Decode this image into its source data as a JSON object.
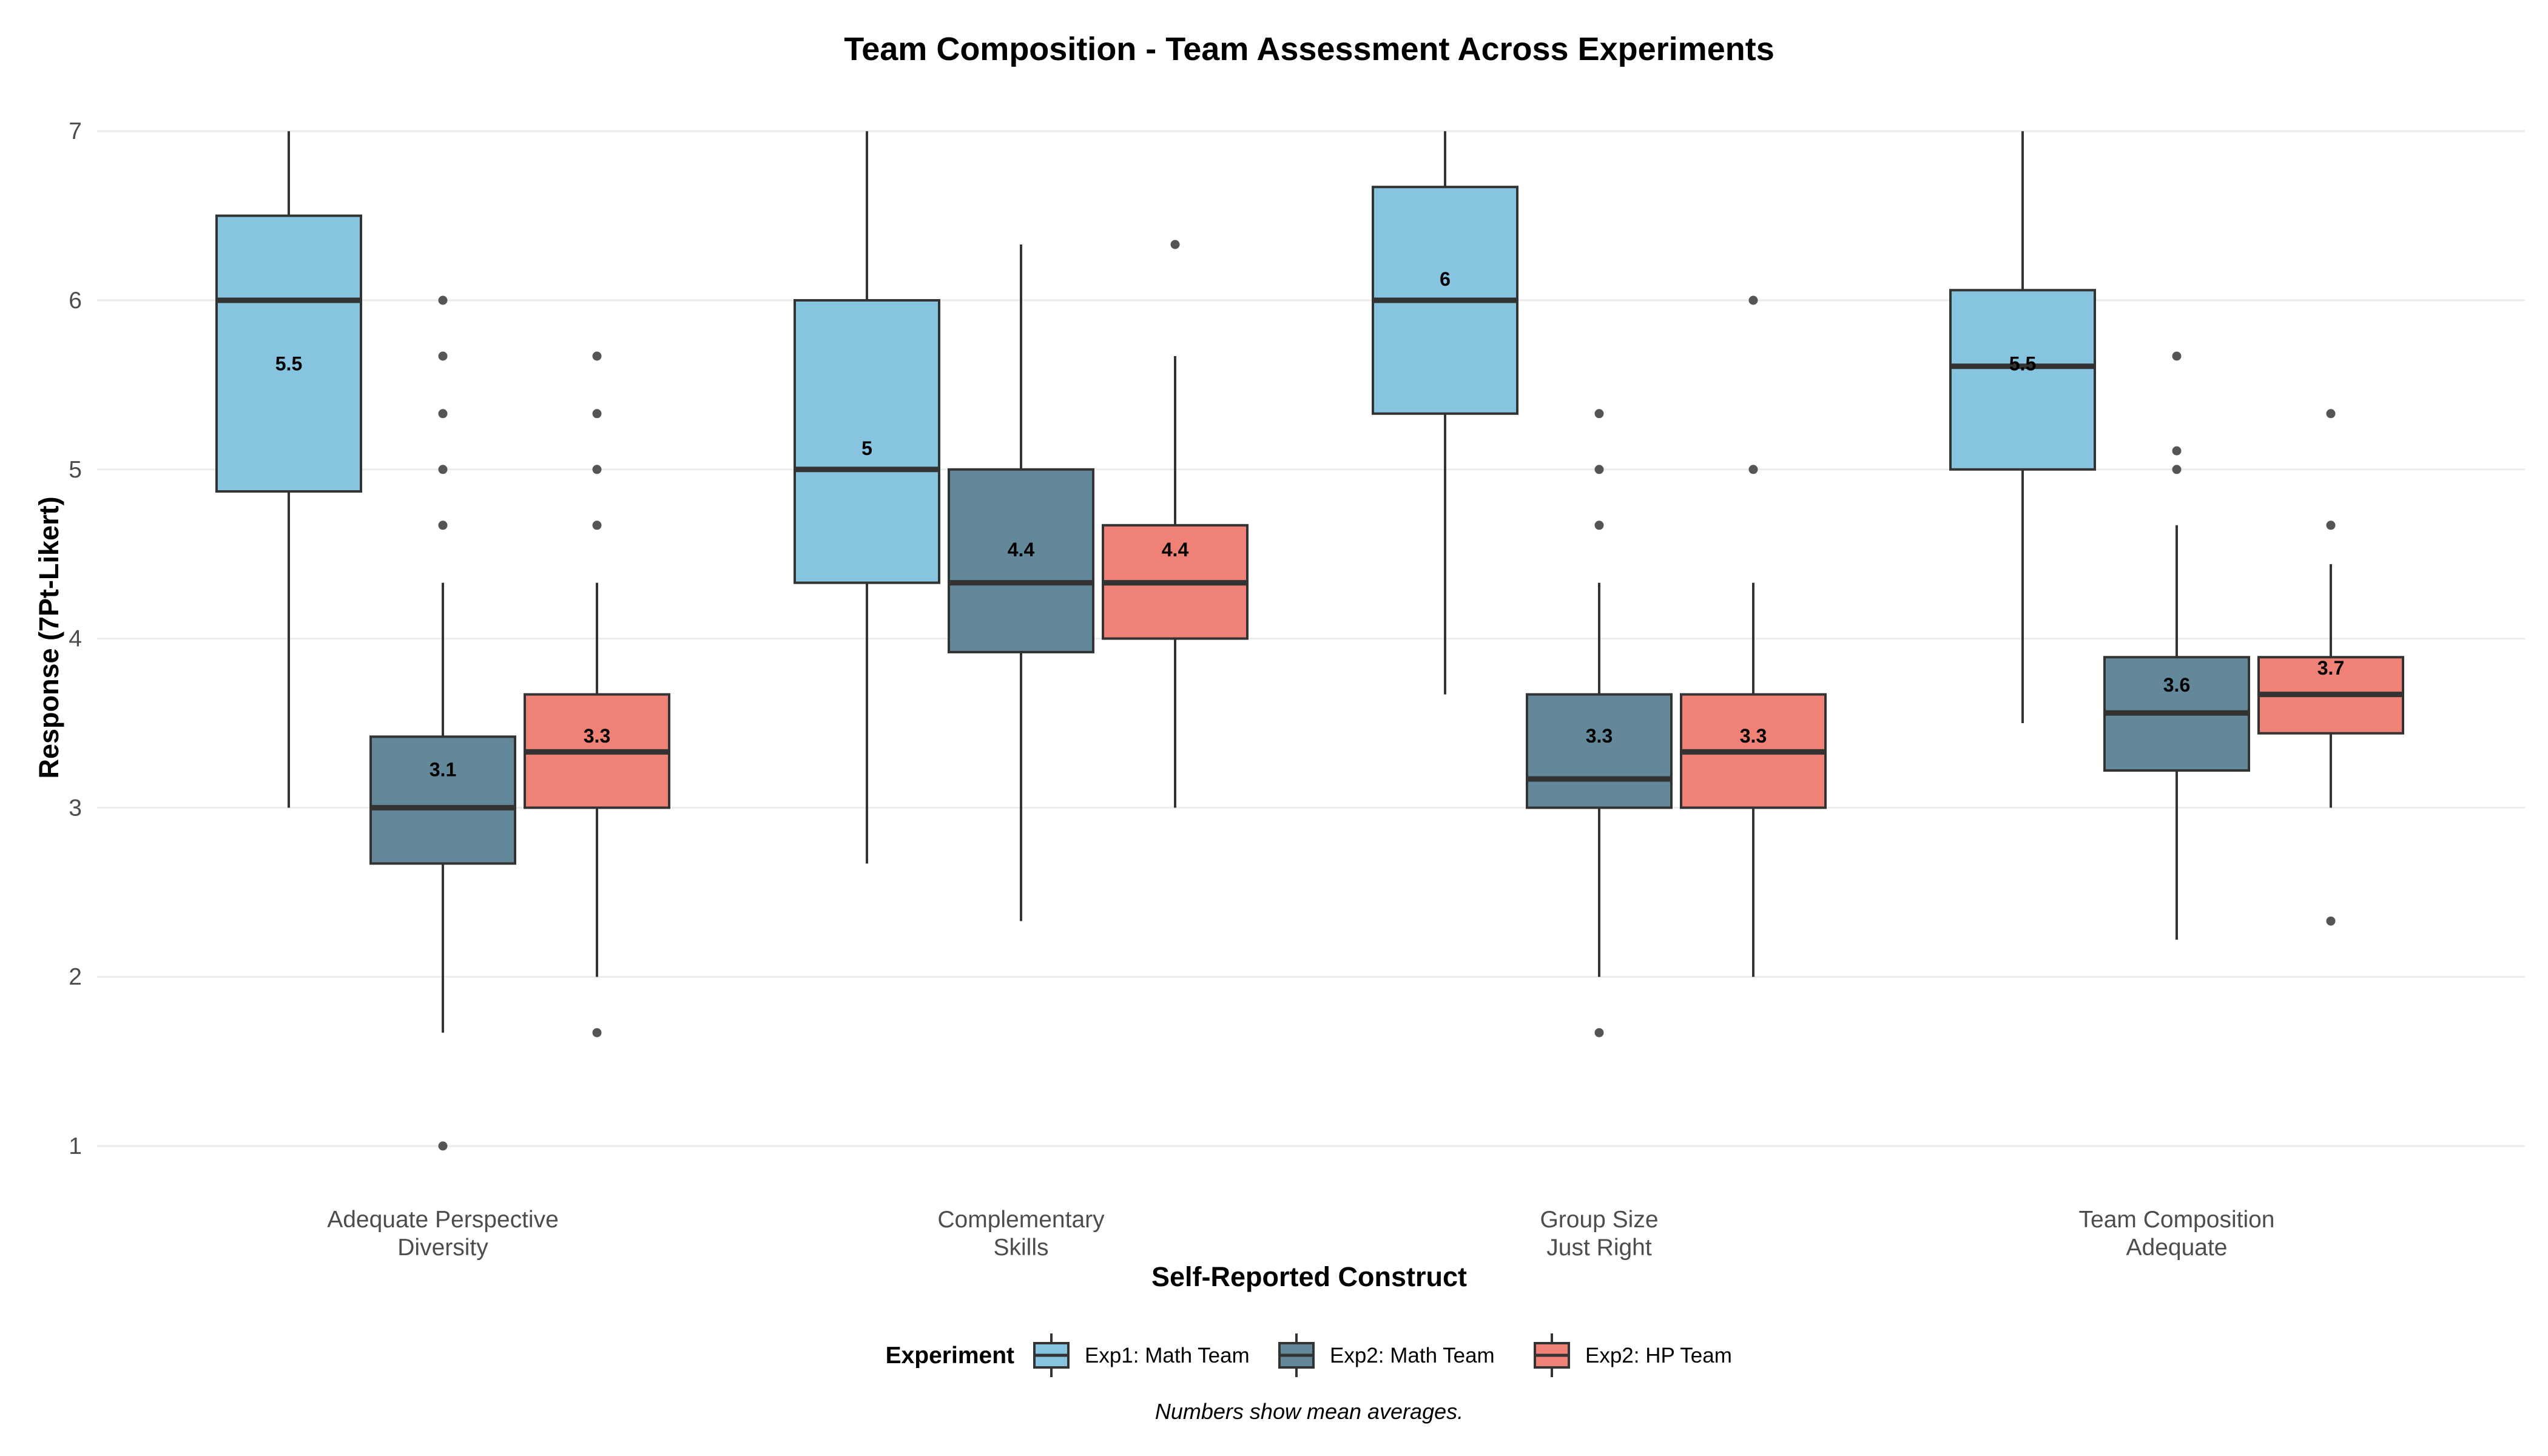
{
  "chart_data": {
    "type": "boxplot",
    "title": "Team Composition - Team Assessment Across Experiments",
    "xlabel": "Self-Reported Construct",
    "ylabel": "Response (7Pt-Likert)",
    "ylim": [
      0.6,
      7.3
    ],
    "yticks": [
      1,
      2,
      3,
      4,
      5,
      6,
      7
    ],
    "grid": true,
    "legend": {
      "title": "Experiment",
      "position": "bottom"
    },
    "caption": "Numbers show mean averages.",
    "categories": [
      [
        "Adequate Perspective",
        "Diversity"
      ],
      [
        "Complementary",
        "Skills"
      ],
      [
        "Group Size",
        "Just Right"
      ],
      [
        "Team Composition",
        "Adequate"
      ]
    ],
    "series": [
      {
        "name": "Exp1: Math Team",
        "color": "#87c4e0",
        "boxes": [
          {
            "whisker_low": 3.0,
            "q1": 4.87,
            "median": 6.0,
            "q3": 6.5,
            "whisker_high": 7.0,
            "mean": 5.5,
            "mean_label": "5.5",
            "outliers": []
          },
          {
            "whisker_low": 2.67,
            "q1": 4.33,
            "median": 5.0,
            "q3": 6.0,
            "whisker_high": 7.0,
            "mean": 5.0,
            "mean_label": "5",
            "outliers": []
          },
          {
            "whisker_low": 3.67,
            "q1": 5.33,
            "median": 6.0,
            "q3": 6.67,
            "whisker_high": 7.0,
            "mean": 6.0,
            "mean_label": "6",
            "outliers": []
          },
          {
            "whisker_low": 3.5,
            "q1": 5.0,
            "median": 5.61,
            "q3": 6.06,
            "whisker_high": 7.0,
            "mean": 5.5,
            "mean_label": "5.5",
            "outliers": []
          }
        ]
      },
      {
        "name": "Exp2: Math Team",
        "color": "#62889a",
        "boxes": [
          {
            "whisker_low": 1.67,
            "q1": 2.67,
            "median": 3.0,
            "q3": 3.42,
            "whisker_high": 4.33,
            "mean": 3.1,
            "mean_label": "3.1",
            "outliers": [
              1.0,
              4.67,
              5.0,
              5.33,
              5.67,
              6.0
            ]
          },
          {
            "whisker_low": 2.33,
            "q1": 3.92,
            "median": 4.33,
            "q3": 5.0,
            "whisker_high": 6.33,
            "mean": 4.4,
            "mean_label": "4.4",
            "outliers": []
          },
          {
            "whisker_low": 2.0,
            "q1": 3.0,
            "median": 3.17,
            "q3": 3.67,
            "whisker_high": 4.33,
            "mean": 3.3,
            "mean_label": "3.3",
            "outliers": [
              1.67,
              4.67,
              5.0,
              5.33
            ]
          },
          {
            "whisker_low": 2.22,
            "q1": 3.22,
            "median": 3.56,
            "q3": 3.89,
            "whisker_high": 4.67,
            "mean": 3.6,
            "mean_label": "3.6",
            "outliers": [
              5.0,
              5.11,
              5.67
            ]
          }
        ]
      },
      {
        "name": "Exp2: HP Team",
        "color": "#ef8176",
        "boxes": [
          {
            "whisker_low": 2.0,
            "q1": 3.0,
            "median": 3.33,
            "q3": 3.67,
            "whisker_high": 4.33,
            "mean": 3.3,
            "mean_label": "3.3",
            "outliers": [
              1.67,
              4.67,
              5.0,
              5.33,
              5.67
            ]
          },
          {
            "whisker_low": 3.0,
            "q1": 4.0,
            "median": 4.33,
            "q3": 4.67,
            "whisker_high": 5.67,
            "mean": 4.4,
            "mean_label": "4.4",
            "outliers": [
              6.33
            ]
          },
          {
            "whisker_low": 2.0,
            "q1": 3.0,
            "median": 3.33,
            "q3": 3.67,
            "whisker_high": 4.33,
            "mean": 3.3,
            "mean_label": "3.3",
            "outliers": [
              5.0,
              6.0
            ]
          },
          {
            "whisker_low": 3.0,
            "q1": 3.44,
            "median": 3.67,
            "q3": 3.89,
            "whisker_high": 4.44,
            "mean": 3.7,
            "mean_label": "3.7",
            "outliers": [
              2.33,
              4.67,
              5.33
            ]
          }
        ]
      }
    ]
  }
}
